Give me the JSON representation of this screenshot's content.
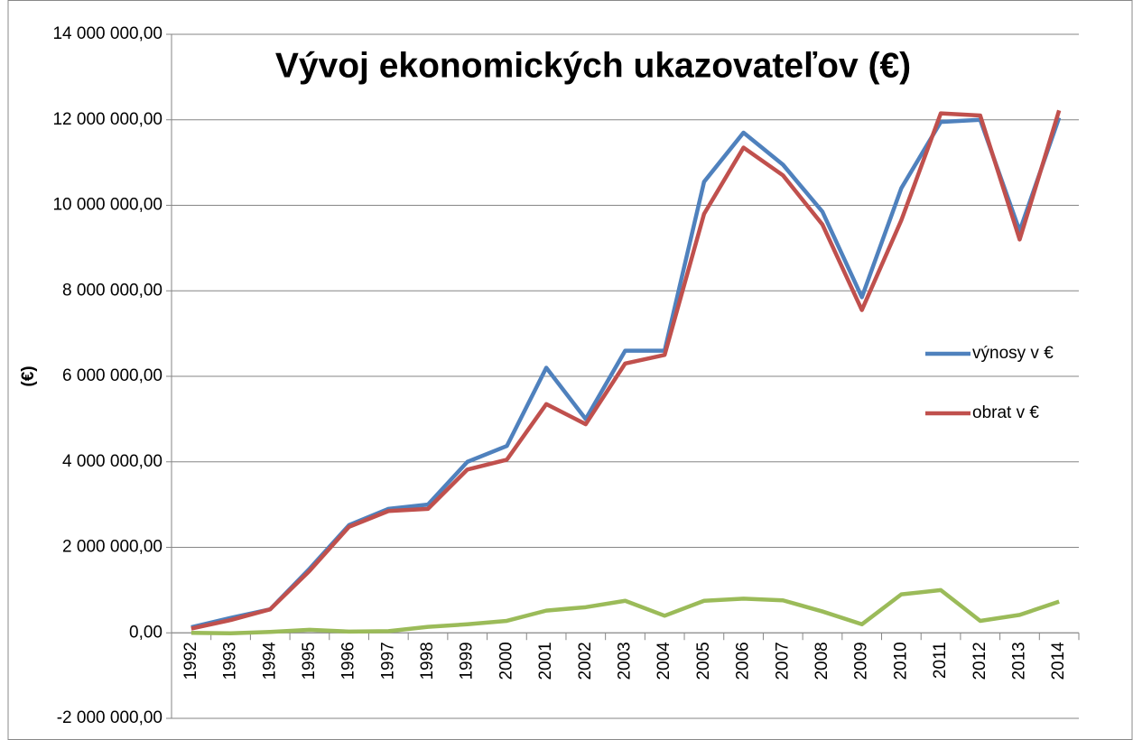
{
  "chart_data": {
    "type": "line",
    "title": "Vývoj ekonomických ukazovateľov (€)",
    "y_label": "(€)",
    "categories": [
      "1992",
      "1993",
      "1994",
      "1995",
      "1996",
      "1997",
      "1998",
      "1999",
      "2000",
      "2001",
      "2002",
      "2003",
      "2004",
      "2005",
      "2006",
      "2007",
      "2008",
      "2009",
      "2010",
      "2011",
      "2012",
      "2013",
      "2014"
    ],
    "series": [
      {
        "name": "výnosy v €",
        "color": "#4f81bd",
        "values": [
          130000,
          350000,
          550000,
          1500000,
          2520000,
          2900000,
          3000000,
          4000000,
          4370000,
          6200000,
          5000000,
          6600000,
          6600000,
          10550000,
          11700000,
          10950000,
          9850000,
          7850000,
          10400000,
          11950000,
          12000000,
          9400000,
          12050000
        ]
      },
      {
        "name": "obrat v €",
        "color": "#c0504d",
        "values": [
          100000,
          300000,
          550000,
          1450000,
          2480000,
          2850000,
          2900000,
          3820000,
          4050000,
          5350000,
          4880000,
          6300000,
          6500000,
          9800000,
          11350000,
          10700000,
          9550000,
          7550000,
          9650000,
          12150000,
          12100000,
          9200000,
          12220000
        ]
      },
      {
        "color": "#9bbb59",
        "values": [
          0,
          -10000,
          20000,
          70000,
          30000,
          40000,
          140000,
          200000,
          280000,
          520000,
          600000,
          750000,
          400000,
          750000,
          800000,
          760000,
          500000,
          200000,
          900000,
          1000000,
          280000,
          420000,
          730000
        ]
      }
    ],
    "ylim": [
      -2000000,
      14000000
    ],
    "yticks": [
      {
        "value": -2000000,
        "label": "-2 000 000,00"
      },
      {
        "value": 0,
        "label": "0,00"
      },
      {
        "value": 2000000,
        "label": "2 000 000,00"
      },
      {
        "value": 4000000,
        "label": "4 000 000,00"
      },
      {
        "value": 6000000,
        "label": "6 000 000,00"
      },
      {
        "value": 8000000,
        "label": "8 000 000,00"
      },
      {
        "value": 10000000,
        "label": "10 000 000,00"
      },
      {
        "value": 12000000,
        "label": "12 000 000,00"
      },
      {
        "value": 14000000,
        "label": "14 000 000,00"
      }
    ],
    "grid": true,
    "legend": "right"
  }
}
